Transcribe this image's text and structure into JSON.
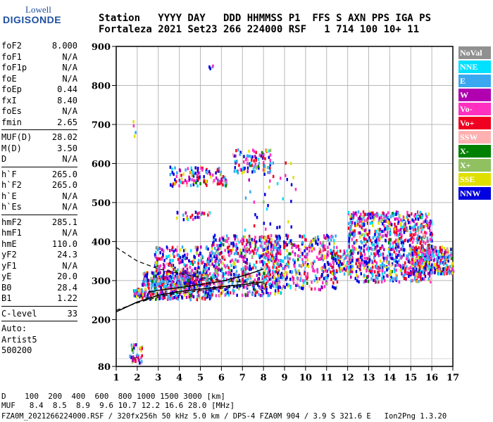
{
  "logo": {
    "top": "Lowell",
    "main": "DIGISONDE"
  },
  "header": {
    "line1": "Station   YYYY DAY   DDD HHMMSS P1  FFS S AXN PPS IGA PS",
    "line2": "Fortaleza 2021 Set23 266 224000 RSF   1 714 100 10+ 11"
  },
  "params": {
    "groups": [
      [
        [
          "foF2",
          "8.000"
        ],
        [
          "foF1",
          "N/A"
        ],
        [
          "foF1p",
          "N/A"
        ],
        [
          "foE",
          "N/A"
        ],
        [
          "foEp",
          "0.44"
        ],
        [
          "fxI",
          "8.40"
        ],
        [
          "foEs",
          "N/A"
        ],
        [
          "fmin",
          "2.65"
        ]
      ],
      [
        [
          "MUF(D)",
          "28.02"
        ],
        [
          "M(D)",
          "3.50"
        ],
        [
          "D",
          "N/A"
        ]
      ],
      [
        [
          "h`F",
          "265.0"
        ],
        [
          "h`F2",
          "265.0"
        ],
        [
          "h`E",
          "N/A"
        ],
        [
          "h`Es",
          "N/A"
        ]
      ],
      [
        [
          "hmF2",
          "285.1"
        ],
        [
          "hmF1",
          "N/A"
        ],
        [
          "hmE",
          "110.0"
        ],
        [
          "yF2",
          "24.3"
        ],
        [
          "yF1",
          "N/A"
        ],
        [
          "yE",
          "20.0"
        ],
        [
          "B0",
          "28.4"
        ],
        [
          "B1",
          "1.22"
        ]
      ],
      [
        [
          "C-level",
          "33"
        ]
      ]
    ],
    "auto": [
      "Auto:",
      "Artist5",
      "500200"
    ]
  },
  "legend": [
    {
      "label": "NoVal",
      "color": "#909090"
    },
    {
      "label": "NNE",
      "color": "#00e0ff"
    },
    {
      "label": "E",
      "color": "#3aa8f0"
    },
    {
      "label": "W",
      "color": "#b000b0"
    },
    {
      "label": "Vo-",
      "color": "#ff30c0"
    },
    {
      "label": "Vo+",
      "color": "#f00020"
    },
    {
      "label": "SSW",
      "color": "#ffb0b0"
    },
    {
      "label": "X-",
      "color": "#008000"
    },
    {
      "label": "X+",
      "color": "#90c060"
    },
    {
      "label": "SSE",
      "color": "#e0e000"
    },
    {
      "label": "NNW",
      "color": "#0000e0"
    }
  ],
  "footer": {
    "line1": "D    100  200  400  600  800 1000 1500 3000 [km]",
    "line2": "MUF   8.4  8.5  8.9  9.6 10.7 12.2 16.6 28.0 [MHz]",
    "file": "FZA0M_2021266224000.RSF / 320fx256h 50 kHz 5.0 km / DPS-4 FZA0M 904 / 3.9 S 321.6 E   Ion2Png 1.3.20"
  },
  "chart_data": {
    "type": "scatter",
    "xlim": [
      1,
      17
    ],
    "ylim": [
      80,
      900
    ],
    "x_ticks": [
      1,
      2,
      3,
      4,
      5,
      6,
      7,
      8,
      9,
      10,
      11,
      12,
      13,
      14,
      15,
      16,
      17
    ],
    "y_ticks": [
      80,
      200,
      300,
      400,
      500,
      600,
      700,
      800,
      900
    ],
    "xlabel": "",
    "ylabel": "",
    "grid": true,
    "echo_clusters": [
      {
        "x": [
          1.8,
          2.2
        ],
        "y": [
          262,
          282
        ],
        "n": 60
      },
      {
        "x": [
          2.2,
          5.5
        ],
        "y": [
          255,
          325
        ],
        "n": 480
      },
      {
        "x": [
          2.8,
          6.0
        ],
        "y": [
          290,
          390
        ],
        "n": 300
      },
      {
        "x": [
          5.5,
          8.8
        ],
        "y": [
          265,
          420
        ],
        "n": 520
      },
      {
        "x": [
          8.0,
          11.5
        ],
        "y": [
          280,
          420
        ],
        "n": 420
      },
      {
        "x": [
          11.2,
          12.2
        ],
        "y": [
          320,
          380
        ],
        "n": 80
      },
      {
        "x": [
          12.0,
          16.0
        ],
        "y": [
          300,
          480
        ],
        "n": 900
      },
      {
        "x": [
          15.0,
          17.0
        ],
        "y": [
          320,
          390
        ],
        "n": 260
      },
      {
        "x": [
          3.5,
          6.2
        ],
        "y": [
          545,
          595
        ],
        "n": 130
      },
      {
        "x": [
          6.5,
          8.3
        ],
        "y": [
          580,
          640
        ],
        "n": 90
      },
      {
        "x": [
          1.6,
          2.2
        ],
        "y": [
          90,
          140
        ],
        "n": 40
      },
      {
        "x": [
          7.0,
          9.5
        ],
        "y": [
          430,
          620
        ],
        "n": 40
      },
      {
        "x": [
          3.8,
          5.5
        ],
        "y": [
          460,
          480
        ],
        "n": 25
      },
      {
        "x": [
          1.7,
          1.9
        ],
        "y": [
          670,
          740
        ],
        "n": 4
      },
      {
        "x": [
          5.3,
          5.6
        ],
        "y": [
          845,
          860
        ],
        "n": 4
      }
    ],
    "profile_curve": {
      "x": [
        1.0,
        2,
        3,
        4,
        5,
        6,
        7,
        8
      ],
      "y": [
        220,
        245,
        262,
        272,
        278,
        284,
        290,
        296
      ]
    },
    "upper_dashed": {
      "x": [
        1.0,
        2,
        3,
        4,
        5,
        6,
        7,
        8
      ],
      "y": [
        385,
        350,
        330,
        318,
        308,
        300,
        296,
        296
      ]
    },
    "lower_dashed": {
      "x": [
        1.0,
        2,
        3,
        4,
        5,
        6,
        7,
        8.2
      ],
      "y": [
        224,
        243,
        258,
        268,
        274,
        280,
        286,
        293
      ]
    },
    "trace_curve": {
      "x": [
        2.5,
        3,
        4,
        5,
        6,
        7,
        7.6,
        8
      ],
      "y": [
        270,
        275,
        282,
        290,
        298,
        312,
        322,
        330
      ]
    }
  }
}
